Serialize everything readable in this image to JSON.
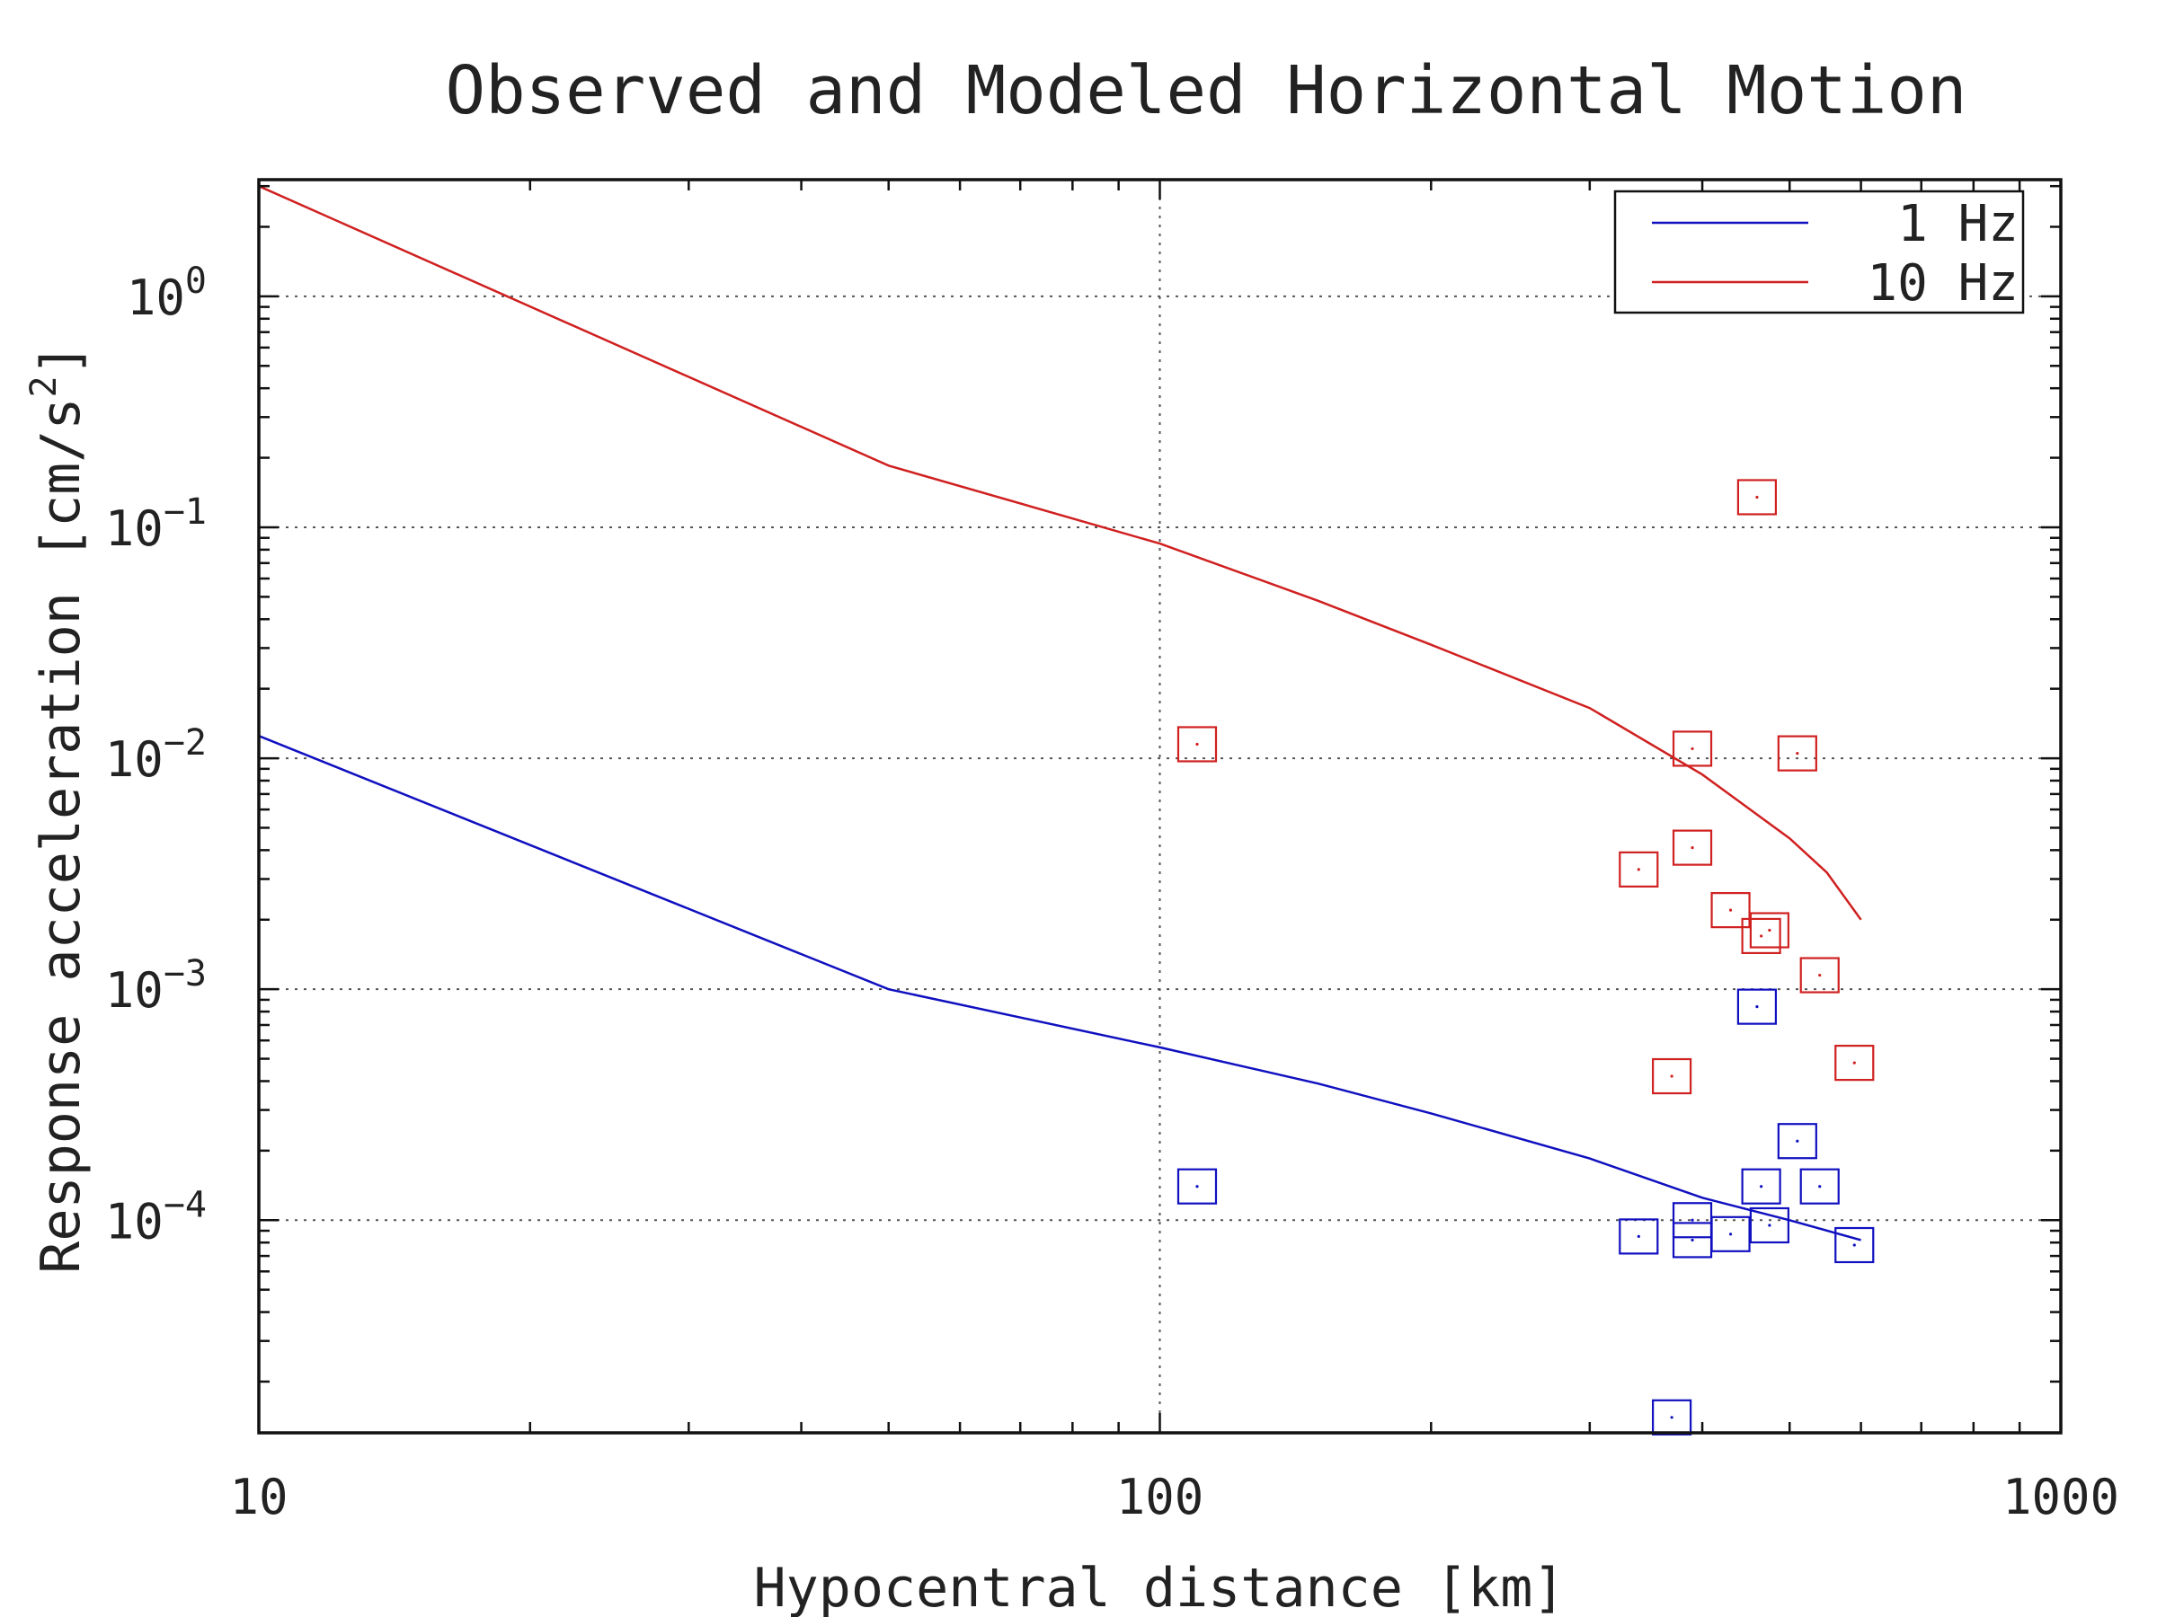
{
  "chart_data": {
    "type": "scatter",
    "title": "Observed and Modeled Horizontal Motion",
    "xlabel": "Hypocentral distance [km]",
    "ylabel_text": "Response acceleration [cm/s",
    "ylabel_superscript": "2",
    "ylabel_close": "]",
    "x_scale": "log",
    "y_scale": "log",
    "xlim": [
      10,
      1000
    ],
    "ylim": [
      1.2e-05,
      3.2
    ],
    "x_tick_labels": [
      "10",
      "100",
      "1000"
    ],
    "y_tick_labels": [
      {
        "base": "10",
        "exp": "0"
      },
      {
        "base": "10",
        "exp": "−1"
      },
      {
        "base": "10",
        "exp": "−2"
      },
      {
        "base": "10",
        "exp": "−3"
      },
      {
        "base": "10",
        "exp": "−4"
      }
    ],
    "grid": true,
    "legend_position": "top-right",
    "series": [
      {
        "name": "1 Hz",
        "color": "#1010c0",
        "model_x": [
          10,
          50,
          100,
          150,
          200,
          300,
          400,
          500,
          600
        ],
        "model_y": [
          0.0125,
          0.001,
          0.00056,
          0.00039,
          0.00029,
          0.000185,
          0.000125,
          0.0001,
          8.2e-05
        ],
        "observed_x": [
          110,
          340,
          370,
          390,
          390,
          430,
          460,
          465,
          475,
          510,
          540,
          590
        ],
        "observed_y": [
          0.00014,
          8.5e-05,
          1.4e-05,
          0.0001,
          8.2e-05,
          8.7e-05,
          0.00084,
          0.00014,
          9.5e-05,
          0.00022,
          0.00014,
          7.8e-05
        ]
      },
      {
        "name": "10 Hz",
        "color": "#d02020",
        "model_x": [
          10,
          50,
          100,
          150,
          200,
          300,
          400,
          500,
          550,
          600
        ],
        "model_y": [
          3.0,
          0.185,
          0.085,
          0.048,
          0.031,
          0.0165,
          0.0085,
          0.0045,
          0.0032,
          0.002
        ],
        "observed_x": [
          110,
          340,
          370,
          390,
          390,
          430,
          460,
          465,
          475,
          510,
          540,
          590
        ],
        "observed_y": [
          0.0115,
          0.0033,
          0.00042,
          0.011,
          0.0041,
          0.0022,
          0.135,
          0.0017,
          0.0018,
          0.0105,
          0.00115,
          0.00048
        ]
      }
    ]
  }
}
